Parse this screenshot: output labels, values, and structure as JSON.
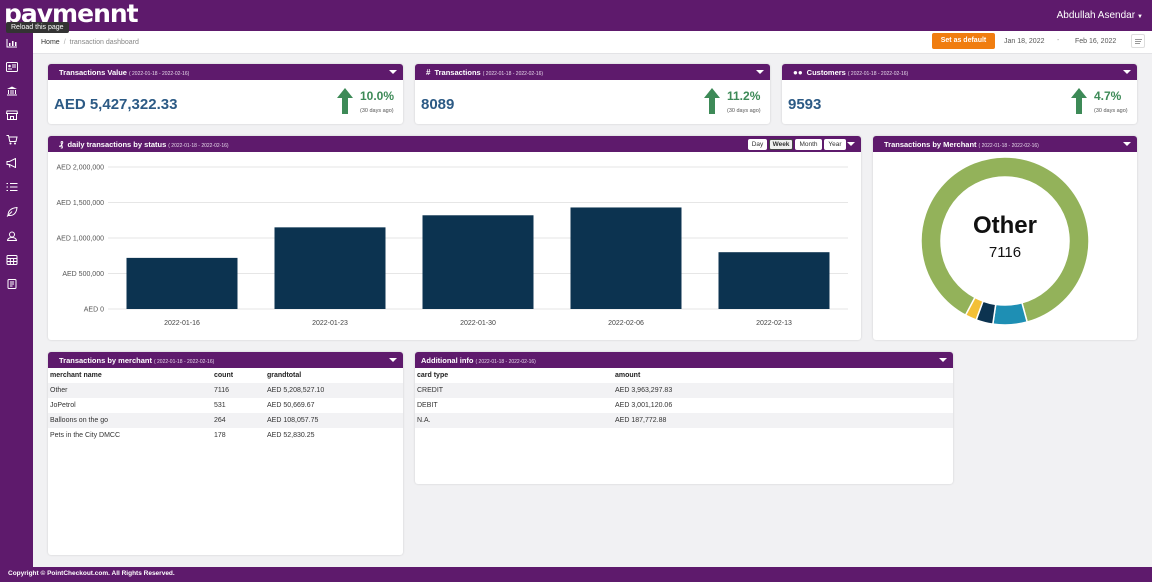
{
  "app": {
    "logo": "pavmennt",
    "tooltip": "Reload this page",
    "user": "Abdullah Asendar"
  },
  "breadcrumb": {
    "home": "Home",
    "current": "transaction dashboard"
  },
  "toolbar": {
    "set_default": "Set as default",
    "date_from": "Jan 18, 2022",
    "date_sep": "-",
    "date_to": "Feb 16, 2022"
  },
  "range": "( 2022-01-18 - 2022-02-16)",
  "kpis": {
    "value": {
      "title": "Transactions Value",
      "amount": "AED 5,427,322.33",
      "pct": "10.0%",
      "sub": "(30 days ago)"
    },
    "transactions": {
      "title": "Transactions",
      "amount": "8089",
      "pct": "11.2%",
      "sub": "(30 days ago)"
    },
    "customers": {
      "title": "Customers",
      "amount": "9593",
      "pct": "4.7%",
      "sub": "(30 days ago)"
    }
  },
  "daily": {
    "title": "daily transactions by status",
    "tabs": [
      "Day",
      "Week",
      "Month",
      "Year"
    ],
    "active_tab": "Week"
  },
  "merchantChart": {
    "title": "Transactions by Merchant",
    "center_label": "Other",
    "center_value": "7116"
  },
  "chart_data": [
    {
      "type": "bar",
      "categories": [
        "2022-01-16",
        "2022-01-23",
        "2022-01-30",
        "2022-02-06",
        "2022-02-13"
      ],
      "values": [
        720000,
        1150000,
        1320000,
        1430000,
        800000
      ],
      "ylim": [
        0,
        2000000
      ],
      "yticks": [
        0,
        500000,
        1000000,
        1500000,
        2000000
      ],
      "yticklabels": [
        "AED 0",
        "AED 500,000",
        "AED 1,000,000",
        "AED 1,500,000",
        "AED 2,000,000"
      ],
      "color": "#0c3350",
      "grid": true
    },
    {
      "type": "pie",
      "donut": true,
      "labels": [
        "Other",
        "JoPetrol",
        "Balloons on the go",
        "Pets in the City DMCC"
      ],
      "values": [
        7116,
        531,
        264,
        178
      ],
      "colors": [
        "#93b25a",
        "#1e8fb4",
        "#0c3350",
        "#f3c037"
      ]
    }
  ],
  "merchantTable": {
    "title": "Transactions by merchant",
    "columns": [
      "merchant name",
      "count",
      "grandtotal"
    ],
    "rows": [
      [
        "Other",
        "7116",
        "AED 5,208,527.10"
      ],
      [
        "JoPetrol",
        "531",
        "AED 50,669.67"
      ],
      [
        "Balloons on the go",
        "264",
        "AED 108,057.75"
      ],
      [
        "Pets in the City DMCC",
        "178",
        "AED 52,830.25"
      ]
    ]
  },
  "additional": {
    "title": "Additional info",
    "columns": [
      "card type",
      "amount"
    ],
    "rows": [
      [
        "CREDIT",
        "AED 3,963,297.83"
      ],
      [
        "DEBIT",
        "AED 3,001,120.06"
      ],
      [
        "N.A.",
        "AED 187,772.88"
      ]
    ]
  },
  "footer": "Copyright © PointCheckout.com. All Rights Reserved."
}
